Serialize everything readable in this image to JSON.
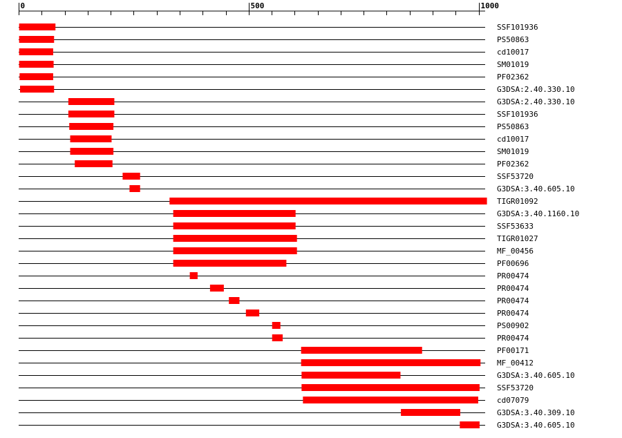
{
  "chart_data": {
    "type": "bar",
    "title": "",
    "xlabel": "",
    "ylabel": "",
    "xlim": [
      0,
      1020
    ],
    "axis_ticks": [
      {
        "value": 0,
        "label": "0"
      },
      {
        "value": 500,
        "label": "500"
      },
      {
        "value": 1000,
        "label": "1000"
      }
    ],
    "minor_tick_step": 50,
    "grid": false,
    "legend": "none",
    "bar_color": "#ff0000",
    "track_color": "#000000",
    "rows": [
      {
        "label": "SSF101936",
        "start": 1,
        "end": 80
      },
      {
        "label": "PS50863",
        "start": 1,
        "end": 77
      },
      {
        "label": "cd10017",
        "start": 1,
        "end": 75
      },
      {
        "label": "SM01019",
        "start": 1,
        "end": 76
      },
      {
        "label": "PF02362",
        "start": 2,
        "end": 75
      },
      {
        "label": "G3DSA:2.40.330.10",
        "start": 3,
        "end": 77
      },
      {
        "label": "G3DSA:2.40.330.10",
        "start": 108,
        "end": 208
      },
      {
        "label": "SSF101936",
        "start": 108,
        "end": 208
      },
      {
        "label": "PS50863",
        "start": 110,
        "end": 206
      },
      {
        "label": "cd10017",
        "start": 112,
        "end": 202
      },
      {
        "label": "SM01019",
        "start": 112,
        "end": 206
      },
      {
        "label": "PF02362",
        "start": 122,
        "end": 204
      },
      {
        "label": "SSF53720",
        "start": 226,
        "end": 264
      },
      {
        "label": "G3DSA:3.40.605.10",
        "start": 241,
        "end": 264
      },
      {
        "label": "TIGR01092",
        "start": 328,
        "end": 1018
      },
      {
        "label": "G3DSA:3.40.1160.10",
        "start": 336,
        "end": 602
      },
      {
        "label": "SSF53633",
        "start": 336,
        "end": 602
      },
      {
        "label": "TIGR01027",
        "start": 336,
        "end": 605
      },
      {
        "label": "MF_00456",
        "start": 336,
        "end": 605
      },
      {
        "label": "PF00696",
        "start": 336,
        "end": 582
      },
      {
        "label": "PR00474",
        "start": 372,
        "end": 389
      },
      {
        "label": "PR00474",
        "start": 416,
        "end": 446
      },
      {
        "label": "PR00474",
        "start": 457,
        "end": 480
      },
      {
        "label": "PR00474",
        "start": 494,
        "end": 523
      },
      {
        "label": "PS00902",
        "start": 551,
        "end": 569
      },
      {
        "label": "PR00474",
        "start": 551,
        "end": 574
      },
      {
        "label": "PF00171",
        "start": 614,
        "end": 877
      },
      {
        "label": "MF_00412",
        "start": 614,
        "end": 1004
      },
      {
        "label": "G3DSA:3.40.605.10",
        "start": 615,
        "end": 830
      },
      {
        "label": "SSF53720",
        "start": 615,
        "end": 1002
      },
      {
        "label": "cd07079",
        "start": 618,
        "end": 999
      },
      {
        "label": "G3DSA:3.40.309.10",
        "start": 831,
        "end": 960
      },
      {
        "label": "G3DSA:3.40.605.10",
        "start": 959,
        "end": 1002
      }
    ]
  }
}
